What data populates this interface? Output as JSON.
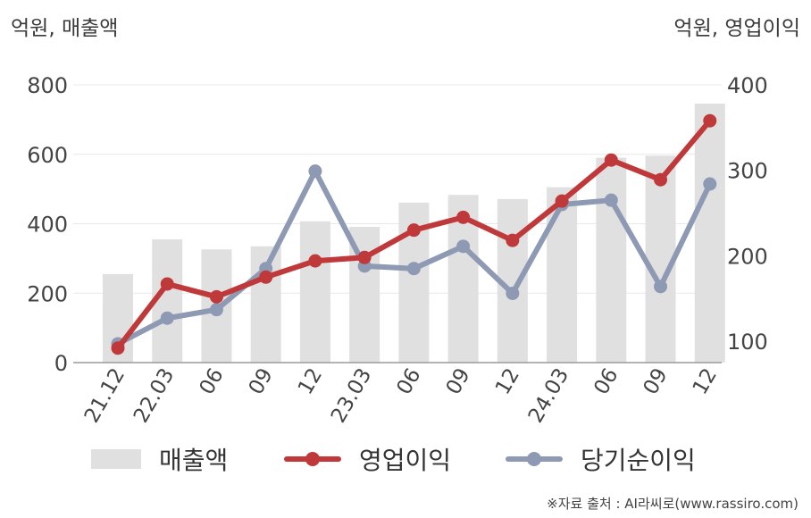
{
  "chart_data": {
    "type": "bar",
    "y_left_label": "억원, 매출액",
    "y_right_label": "억원, 영업이익",
    "categories": [
      "21.12",
      "22.03",
      "06",
      "09",
      "12",
      "23.03",
      "06",
      "09",
      "12",
      "24.03",
      "06",
      "09",
      "12"
    ],
    "y_left_ticks": [
      "0",
      "200",
      "400",
      "600",
      "800"
    ],
    "y_right_ticks": [
      "100",
      "200",
      "300",
      "400"
    ],
    "ylim_left": [
      0,
      800
    ],
    "ylim_right": [
      75,
      400
    ],
    "series": [
      {
        "name": "매출액",
        "type": "bar",
        "axis": "left",
        "color": "#e0e0e0",
        "values": [
          255,
          355,
          326,
          335,
          407,
          391,
          461,
          483,
          471,
          505,
          590,
          596,
          746
        ]
      },
      {
        "name": "영업이익",
        "type": "line",
        "axis": "right",
        "color": "#c0393a",
        "values": [
          92,
          167,
          152,
          175,
          194,
          198,
          230,
          245,
          218,
          264,
          312,
          289,
          358
        ]
      },
      {
        "name": "당기순이익",
        "type": "line",
        "axis": "right",
        "color": "#8e99b3",
        "values": [
          97,
          127,
          137,
          185,
          299,
          188,
          185,
          211,
          156,
          260,
          265,
          164,
          284
        ]
      }
    ],
    "grid": true,
    "legend_position": "bottom"
  },
  "footer": {
    "source": "※자료 출처 : AI라씨로(www.rassiro.com)"
  }
}
